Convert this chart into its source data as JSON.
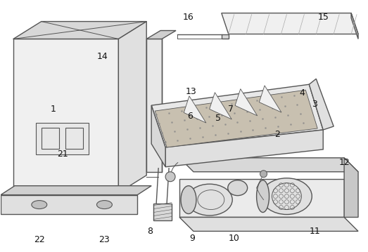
{
  "bg_color": "#ffffff",
  "lc": "#555555",
  "lw_main": 1.0,
  "lw_thin": 0.7,
  "figsize": [
    5.23,
    3.59
  ],
  "dpi": 100,
  "label_fs": 9
}
